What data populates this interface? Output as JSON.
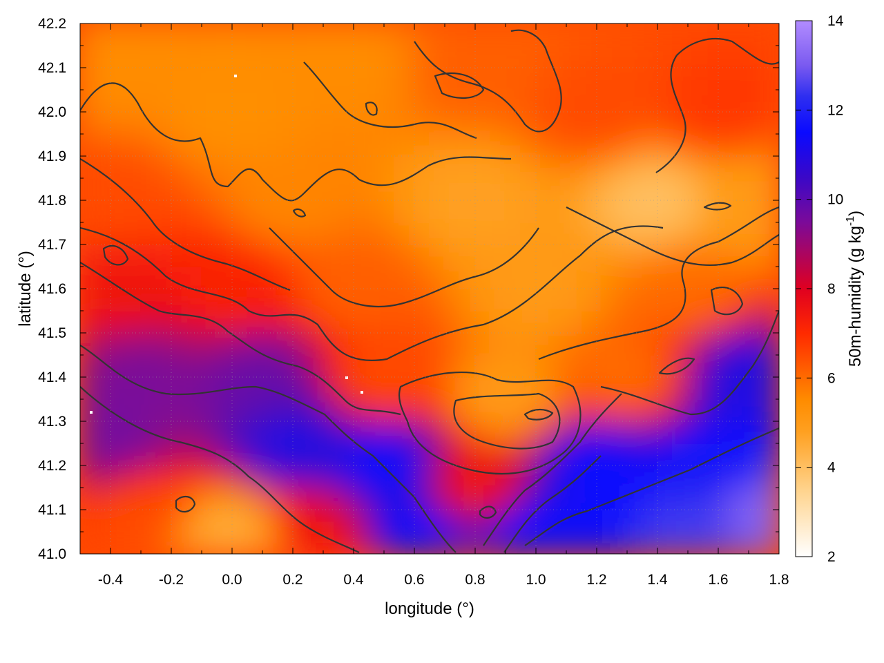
{
  "chart_data": {
    "type": "heatmap",
    "xlabel": "longitude (°)",
    "ylabel": "latitude (°)",
    "xlim": [
      -0.5,
      1.8
    ],
    "ylim": [
      41.0,
      42.2
    ],
    "x_ticks": [
      -0.4,
      -0.2,
      0.0,
      0.2,
      0.4,
      0.6,
      0.8,
      1.0,
      1.2,
      1.4,
      1.6,
      1.8
    ],
    "x_tick_labels": [
      "-0.4",
      "-0.2",
      "0.0",
      "0.2",
      "0.4",
      "0.6",
      "0.8",
      "1.0",
      "1.2",
      "1.4",
      "1.6",
      "1.8"
    ],
    "y_ticks": [
      41.0,
      41.1,
      41.2,
      41.3,
      41.4,
      41.5,
      41.6,
      41.7,
      41.8,
      41.9,
      42.0,
      42.1,
      42.2
    ],
    "y_tick_labels": [
      "41.0",
      "41.1",
      "41.2",
      "41.3",
      "41.4",
      "41.5",
      "41.6",
      "41.7",
      "41.8",
      "41.9",
      "42.0",
      "42.1",
      "42.2"
    ],
    "grid": true,
    "colorbar": {
      "label_main": "50m-humidity (g kg",
      "label_exp": "-1",
      "label_close": ")",
      "range": [
        2,
        14
      ],
      "ticks": [
        2,
        4,
        6,
        8,
        10,
        12,
        14
      ],
      "tick_labels": [
        "2",
        "4",
        "6",
        "8",
        "10",
        "12",
        "14"
      ],
      "palette": [
        "#ffffff",
        "#ffd38c",
        "#ffa020",
        "#ff8c00",
        "#ff2a00",
        "#e00020",
        "#7a0a9a",
        "#3a08c8",
        "#0a0aff",
        "#2e2ef0",
        "#7a5af0",
        "#b28cff"
      ],
      "palette_stops": [
        2,
        3.5,
        4.8,
        5.5,
        7.0,
        8.0,
        9.5,
        10.5,
        11.5,
        12.3,
        13.0,
        14.0
      ]
    },
    "field": {
      "description_units": "g kg-1",
      "sample_points": [
        {
          "lon": -0.4,
          "lat": 42.1,
          "value": 5.5
        },
        {
          "lon": 0.0,
          "lat": 42.0,
          "value": 5.4
        },
        {
          "lon": 0.4,
          "lat": 42.1,
          "value": 5.5
        },
        {
          "lon": 0.8,
          "lat": 42.1,
          "value": 6.2
        },
        {
          "lon": 1.2,
          "lat": 42.0,
          "value": 6.5
        },
        {
          "lon": 1.6,
          "lat": 42.0,
          "value": 6.8
        },
        {
          "lon": -0.4,
          "lat": 41.8,
          "value": 6.5
        },
        {
          "lon": 0.2,
          "lat": 41.8,
          "value": 5.6
        },
        {
          "lon": 0.8,
          "lat": 41.8,
          "value": 4.8
        },
        {
          "lon": 1.4,
          "lat": 41.8,
          "value": 4.0
        },
        {
          "lon": 1.7,
          "lat": 41.8,
          "value": 5.0
        },
        {
          "lon": -0.4,
          "lat": 41.6,
          "value": 7.5
        },
        {
          "lon": 0.0,
          "lat": 41.6,
          "value": 7.2
        },
        {
          "lon": 0.4,
          "lat": 41.6,
          "value": 6.2
        },
        {
          "lon": 1.0,
          "lat": 41.6,
          "value": 5.0
        },
        {
          "lon": 1.5,
          "lat": 41.6,
          "value": 6.0
        },
        {
          "lon": -0.3,
          "lat": 41.4,
          "value": 9.5
        },
        {
          "lon": 0.1,
          "lat": 41.4,
          "value": 9.8
        },
        {
          "lon": 0.5,
          "lat": 41.4,
          "value": 6.5
        },
        {
          "lon": 0.9,
          "lat": 41.35,
          "value": 5.0
        },
        {
          "lon": 1.3,
          "lat": 41.4,
          "value": 6.0
        },
        {
          "lon": 1.7,
          "lat": 41.4,
          "value": 11.0
        },
        {
          "lon": -0.4,
          "lat": 41.25,
          "value": 9.6
        },
        {
          "lon": 0.2,
          "lat": 41.25,
          "value": 11.0
        },
        {
          "lon": 0.5,
          "lat": 41.2,
          "value": 11.5
        },
        {
          "lon": 0.8,
          "lat": 41.15,
          "value": 7.5
        },
        {
          "lon": 1.2,
          "lat": 41.2,
          "value": 11.5
        },
        {
          "lon": 1.6,
          "lat": 41.2,
          "value": 11.8
        },
        {
          "lon": -0.3,
          "lat": 41.1,
          "value": 6.5
        },
        {
          "lon": 0.0,
          "lat": 41.05,
          "value": 4.5
        },
        {
          "lon": 0.3,
          "lat": 41.05,
          "value": 7.5
        },
        {
          "lon": 0.6,
          "lat": 41.05,
          "value": 11.5
        },
        {
          "lon": 1.0,
          "lat": 41.05,
          "value": 11.5
        },
        {
          "lon": 1.5,
          "lat": 41.05,
          "value": 12.5
        },
        {
          "lon": 1.75,
          "lat": 41.1,
          "value": 13.2
        }
      ]
    }
  }
}
